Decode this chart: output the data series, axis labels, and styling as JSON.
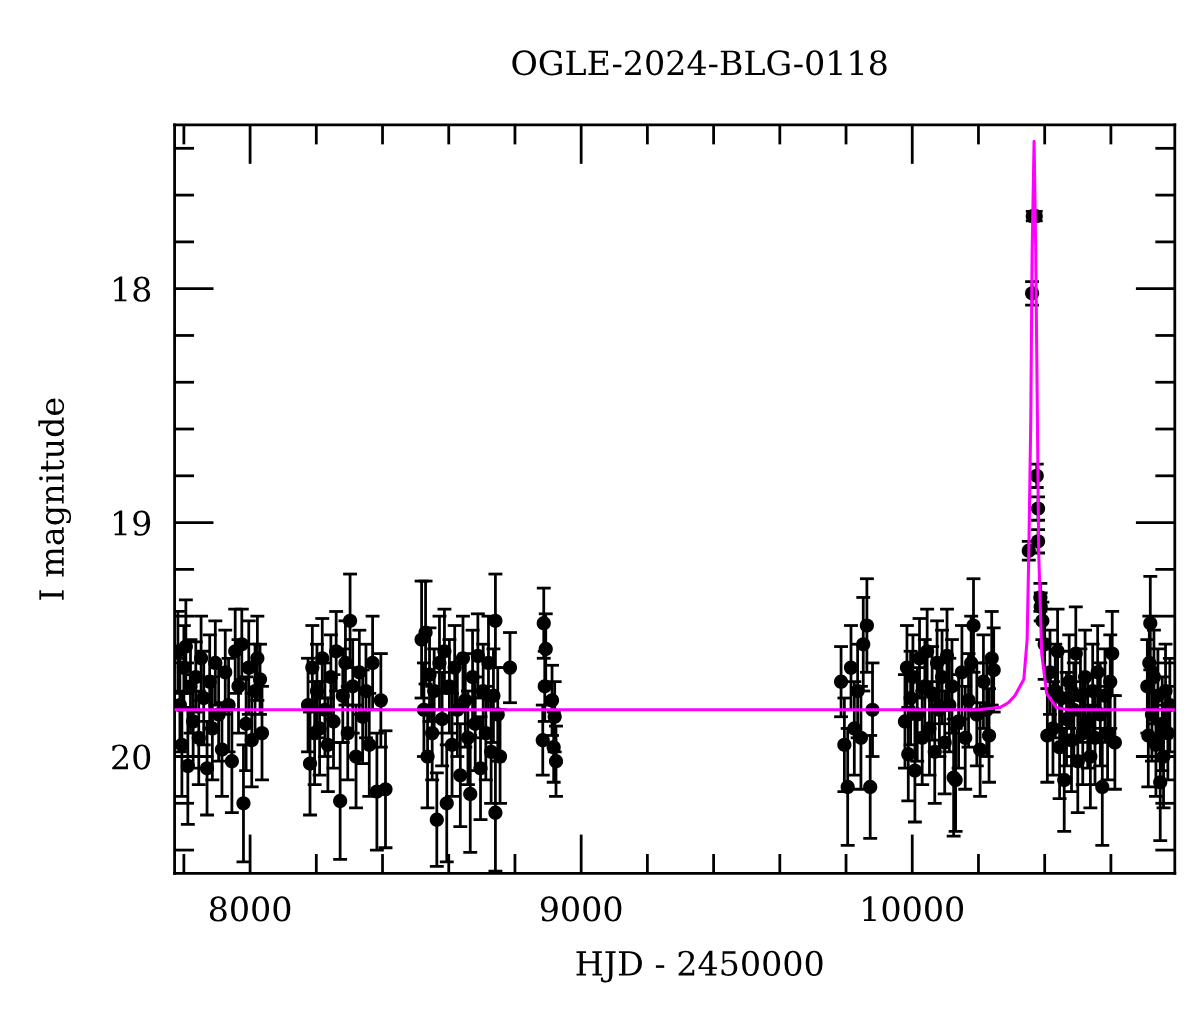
{
  "chart_data": {
    "type": "scatter",
    "title": "OGLE-2024-BLG-0118",
    "xlabel": "HJD - 2450000",
    "ylabel": "I magnitude",
    "marker": "circle",
    "xlim": [
      7772,
      10793
    ],
    "ylim": [
      20.5,
      17.3
    ],
    "xticks": [
      {
        "value": 7800,
        "label": null
      },
      8000,
      {
        "value": 8200,
        "label": null
      },
      {
        "value": 8400,
        "label": null
      },
      {
        "value": 8600,
        "label": null
      },
      {
        "value": 8800,
        "label": null
      },
      9000,
      {
        "value": 9200,
        "label": null
      },
      {
        "value": 9400,
        "label": null
      },
      {
        "value": 9600,
        "label": null
      },
      {
        "value": 9800,
        "label": null
      },
      10000,
      {
        "value": 10200,
        "label": null
      },
      {
        "value": 10400,
        "label": null
      },
      {
        "value": 10600,
        "label": null
      }
    ],
    "yticks": [
      {
        "value": 17.4,
        "label": null
      },
      {
        "value": 17.6,
        "label": null
      },
      {
        "value": 17.8,
        "label": null
      },
      18,
      {
        "value": 18.2,
        "label": null
      },
      {
        "value": 18.4,
        "label": null
      },
      {
        "value": 18.6,
        "label": null
      },
      {
        "value": 18.8,
        "label": null
      },
      19,
      {
        "value": 19.2,
        "label": null
      },
      {
        "value": 19.4,
        "label": null
      },
      {
        "value": 19.6,
        "label": null
      },
      {
        "value": 19.8,
        "label": null
      },
      20,
      {
        "value": 20.2,
        "label": null
      },
      {
        "value": 20.4,
        "label": null
      }
    ],
    "series": [
      {
        "color": "#000000",
        "x": [
          7782,
          7788,
          7794,
          7800,
          7806,
          7812,
          7820,
          7828,
          7836,
          7845,
          7852,
          7860,
          7870,
          7878,
          7886,
          7895,
          7905,
          7915,
          7925,
          7935,
          7945,
          7955,
          7965,
          7975,
          7980,
          7988,
          7996,
          8005,
          8015,
          8022,
          8030,
          8036,
          8175,
          8181,
          8188,
          8195,
          8202,
          8210,
          8218,
          8226,
          8235,
          8244,
          8252,
          8260,
          8272,
          8280,
          8288,
          8295,
          8302,
          8310,
          8320,
          8330,
          8340,
          8350,
          8360,
          8370,
          8383,
          8395,
          8409,
          8518,
          8525,
          8530,
          8536,
          8542,
          8550,
          8556,
          8564,
          8572,
          8580,
          8587,
          8594,
          8602,
          8610,
          8618,
          8626,
          8635,
          8643,
          8650,
          8658,
          8665,
          8672,
          8680,
          8688,
          8696,
          8704,
          8712,
          8720,
          8728,
          8735,
          8741,
          8741,
          8748,
          8755,
          8785,
          8887,
          8884,
          8890,
          8893,
          8912,
          8917,
          8924,
          8920,
          9785,
          9795,
          9805,
          9815,
          9825,
          9835,
          9845,
          9852,
          9863,
          9873,
          9880,
          9978,
          9984,
          9988,
          9995,
          10002,
          10008,
          10015,
          10022,
          10030,
          10038,
          10045,
          10052,
          10060,
          10068,
          10075,
          10082,
          10090,
          10098,
          10105,
          10112,
          10120,
          10125,
          10131,
          10140,
          10150,
          10160,
          10170,
          10178,
          10185,
          10195,
          10205,
          10215,
          10225,
          10232,
          10240,
          10246,
          10352,
          10362,
          10364,
          10373,
          10376,
          10380,
          10380,
          10387,
          10388,
          10393,
          10400,
          10408,
          10416,
          10425,
          10432,
          10439,
          10445,
          10452,
          10459,
          10466,
          10474,
          10481,
          10488,
          10494,
          10500,
          10508,
          10515,
          10522,
          10530,
          10538,
          10545,
          10552,
          10560,
          10568,
          10574,
          10582,
          10590,
          10598,
          10604,
          10612,
          10710,
          10713,
          10716,
          10719,
          10724,
          10730,
          10736,
          10742,
          10749,
          10755,
          10759,
          10765,
          10772,
          10778
        ],
        "values": [
          19.55,
          19.78,
          19.95,
          19.62,
          19.53,
          20.04,
          19.7,
          19.85,
          19.66,
          19.92,
          19.58,
          19.75,
          20.05,
          19.68,
          19.88,
          19.6,
          19.82,
          19.97,
          19.64,
          19.78,
          20.02,
          19.55,
          19.7,
          19.52,
          20.2,
          19.86,
          19.62,
          19.93,
          19.72,
          19.58,
          19.67,
          19.9,
          19.78,
          20.03,
          19.62,
          19.9,
          19.72,
          19.88,
          19.58,
          19.8,
          19.95,
          19.66,
          19.85,
          19.55,
          20.19,
          19.74,
          19.6,
          19.9,
          19.42,
          19.7,
          20.0,
          19.64,
          19.83,
          19.72,
          19.95,
          19.6,
          20.15,
          19.76,
          20.14,
          19.5,
          19.8,
          19.47,
          20.0,
          19.65,
          19.9,
          19.72,
          20.27,
          19.6,
          19.84,
          19.55,
          20.2,
          19.7,
          19.95,
          19.62,
          19.8,
          20.08,
          19.58,
          19.76,
          19.92,
          20.16,
          19.66,
          19.86,
          19.57,
          20.05,
          19.72,
          19.9,
          19.6,
          19.98,
          19.74,
          19.42,
          20.24,
          19.82,
          20.0,
          19.62,
          19.43,
          19.93,
          19.7,
          19.54,
          19.76,
          19.96,
          20.02,
          19.83,
          19.68,
          19.95,
          20.13,
          19.62,
          19.88,
          19.72,
          19.92,
          19.52,
          19.44,
          20.13,
          19.8,
          19.85,
          19.62,
          19.99,
          19.75,
          19.66,
          20.06,
          19.82,
          19.58,
          19.92,
          19.7,
          19.55,
          19.88,
          19.73,
          19.98,
          19.6,
          19.8,
          19.66,
          19.94,
          19.57,
          19.78,
          19.7,
          20.09,
          20.1,
          19.85,
          19.64,
          19.92,
          19.76,
          19.6,
          19.44,
          19.82,
          19.97,
          19.68,
          19.8,
          19.91,
          19.58,
          19.63,
          19.12,
          18.02,
          17.69,
          17.69,
          18.8,
          18.94,
          19.08,
          19.32,
          19.36,
          19.42,
          19.52,
          19.91,
          19.64,
          19.88,
          19.72,
          19.55,
          19.96,
          19.75,
          20.1,
          19.84,
          19.68,
          19.93,
          19.8,
          19.56,
          20.02,
          19.74,
          19.9,
          19.66,
          19.85,
          20.0,
          19.72,
          19.92,
          19.64,
          19.82,
          20.13,
          19.74,
          19.9,
          19.68,
          19.56,
          19.94,
          19.7,
          19.91,
          19.6,
          19.43,
          19.82,
          19.66,
          19.95,
          19.74,
          20.11,
          19.86,
          20.0,
          19.72,
          19.9,
          19.78
        ],
        "errors": [
          0.17,
          0.2,
          0.22,
          0.18,
          0.2,
          0.25,
          0.2,
          0.2,
          0.15,
          0.2,
          0.18,
          0.2,
          0.2,
          0.2,
          0.22,
          0.18,
          0.2,
          0.2,
          0.18,
          0.2,
          0.22,
          0.18,
          0.2,
          0.15,
          0.25,
          0.2,
          0.2,
          0.2,
          0.2,
          0.18,
          0.15,
          0.2,
          0.2,
          0.22,
          0.18,
          0.22,
          0.2,
          0.2,
          0.17,
          0.2,
          0.2,
          0.18,
          0.2,
          0.17,
          0.25,
          0.2,
          0.18,
          0.2,
          0.2,
          0.2,
          0.22,
          0.18,
          0.2,
          0.2,
          0.22,
          0.2,
          0.25,
          0.2,
          0.25,
          0.25,
          0.2,
          0.22,
          0.22,
          0.2,
          0.2,
          0.18,
          0.2,
          0.2,
          0.2,
          0.18,
          0.25,
          0.2,
          0.22,
          0.18,
          0.2,
          0.22,
          0.18,
          0.2,
          0.2,
          0.25,
          0.2,
          0.2,
          0.18,
          0.22,
          0.2,
          0.2,
          0.2,
          0.22,
          0.2,
          0.2,
          0.25,
          0.2,
          0.2,
          0.15,
          0.15,
          0.15,
          0.15,
          0.15,
          0.15,
          0.15,
          0.15,
          0.15,
          0.15,
          0.2,
          0.25,
          0.18,
          0.2,
          0.2,
          0.22,
          0.2,
          0.2,
          0.22,
          0.2,
          0.2,
          0.18,
          0.2,
          0.2,
          0.18,
          0.22,
          0.2,
          0.17,
          0.2,
          0.2,
          0.18,
          0.2,
          0.2,
          0.22,
          0.18,
          0.2,
          0.2,
          0.22,
          0.2,
          0.2,
          0.2,
          0.25,
          0.22,
          0.2,
          0.2,
          0.22,
          0.2,
          0.2,
          0.2,
          0.22,
          0.2,
          0.2,
          0.2,
          0.2,
          0.2,
          0.18,
          0.04,
          0.05,
          0.02,
          0.02,
          0.05,
          0.05,
          0.05,
          0.06,
          0.06,
          0.08,
          0.15,
          0.2,
          0.18,
          0.2,
          0.2,
          0.18,
          0.22,
          0.2,
          0.22,
          0.2,
          0.2,
          0.22,
          0.2,
          0.2,
          0.22,
          0.2,
          0.22,
          0.2,
          0.2,
          0.22,
          0.2,
          0.2,
          0.2,
          0.22,
          0.25,
          0.2,
          0.2,
          0.2,
          0.18,
          0.2,
          0.2,
          0.22,
          0.2,
          0.2,
          0.2,
          0.2,
          0.22,
          0.2,
          0.25,
          0.2,
          0.22,
          0.2,
          0.2,
          0.2
        ]
      },
      {
        "type": "line",
        "color": "#ff00ff",
        "marker": "none",
        "line_style": "solid",
        "x": [
          7772,
          10200,
          10266,
          10290,
          10310,
          10337,
          10347,
          10352,
          10358,
          10362,
          10368,
          10373,
          10379,
          10382,
          10391,
          10406,
          10435,
          10470,
          10793
        ],
        "values": [
          19.8,
          19.8,
          19.79,
          19.77,
          19.74,
          19.67,
          19.5,
          19.13,
          18.56,
          17.85,
          17.37,
          17.85,
          18.7,
          19.13,
          19.56,
          19.73,
          19.79,
          19.8,
          19.8
        ]
      }
    ]
  }
}
